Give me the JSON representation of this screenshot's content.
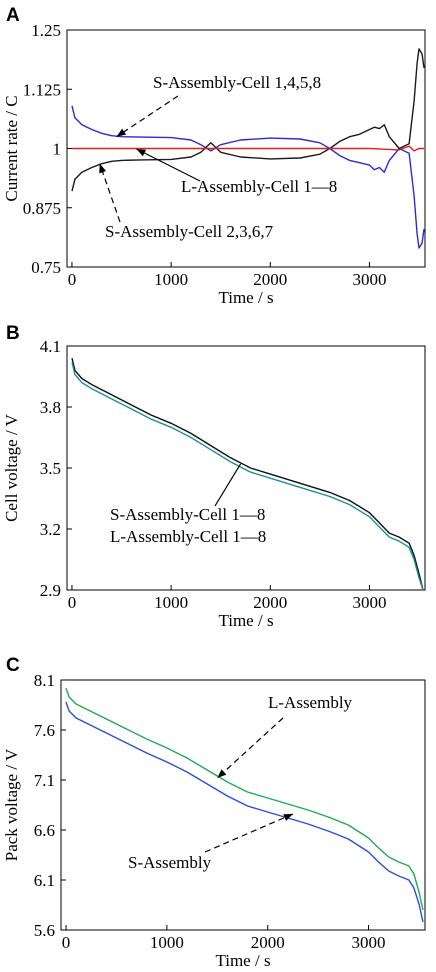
{
  "chart_data": [
    {
      "type": "line",
      "panel_label": "A",
      "xlabel": "Time / s",
      "ylabel": "Current rate / C",
      "xlim": [
        -50,
        3560
      ],
      "ylim": [
        0.75,
        1.25
      ],
      "xticks": [
        0,
        1000,
        2000,
        3000
      ],
      "yticks": [
        0.75,
        0.875,
        1,
        1.125,
        1.25
      ],
      "ytick_labels": [
        "0.75",
        "0.875",
        "1",
        "1.125",
        "1.25"
      ],
      "grid": false,
      "series": [
        {
          "color": "#2b2bd4",
          "x": [
            0,
            30,
            100,
            200,
            300,
            400,
            500,
            700,
            1000,
            1200,
            1300,
            1400,
            1500,
            1700,
            2000,
            2300,
            2500,
            2600,
            2700,
            2800,
            2900,
            3000,
            3050,
            3100,
            3150,
            3200,
            3300,
            3400,
            3450,
            3480,
            3500,
            3530,
            3550
          ],
          "y": [
            1.09,
            1.065,
            1.05,
            1.04,
            1.032,
            1.027,
            1.025,
            1.024,
            1.023,
            1.018,
            1.008,
            0.995,
            1.008,
            1.018,
            1.022,
            1.02,
            1.012,
            1.0,
            0.985,
            0.975,
            0.97,
            0.965,
            0.955,
            0.96,
            0.95,
            0.975,
            1.0,
            0.99,
            0.9,
            0.82,
            0.79,
            0.8,
            0.83
          ]
        },
        {
          "color": "#1a1a1a",
          "x": [
            0,
            30,
            100,
            200,
            300,
            400,
            500,
            700,
            1000,
            1200,
            1300,
            1400,
            1500,
            1700,
            2000,
            2300,
            2500,
            2600,
            2700,
            2800,
            2900,
            3000,
            3050,
            3100,
            3150,
            3200,
            3300,
            3400,
            3450,
            3480,
            3500,
            3530,
            3550
          ],
          "y": [
            0.91,
            0.935,
            0.95,
            0.96,
            0.968,
            0.973,
            0.975,
            0.976,
            0.977,
            0.982,
            0.992,
            1.012,
            0.992,
            0.982,
            0.978,
            0.98,
            0.988,
            1.0,
            1.015,
            1.025,
            1.03,
            1.04,
            1.045,
            1.042,
            1.05,
            1.025,
            1.0,
            1.01,
            1.1,
            1.18,
            1.21,
            1.2,
            1.17
          ]
        },
        {
          "color": "#e02020",
          "x": [
            0,
            500,
            1000,
            1300,
            1400,
            1500,
            2000,
            2600,
            3000,
            3300,
            3400,
            3450,
            3500,
            3550
          ],
          "y": [
            1.0,
            1.0,
            1.0,
            1.0,
            1.0,
            1.0,
            1.0,
            1.0,
            1.0,
            0.997,
            1.005,
            0.995,
            1.0,
            1.0
          ]
        }
      ],
      "annotations": [
        {
          "text": "S-Assembly-Cell 1,4,5,8",
          "points_to": [
            450,
            1.025
          ],
          "style": "dashed"
        },
        {
          "text": "L-Assembly-Cell 1—8",
          "points_to": [
            650,
            0.999
          ],
          "style": "solid"
        },
        {
          "text": "S-Assembly-Cell 2,3,6,7",
          "points_to": [
            280,
            0.968
          ],
          "style": "dashed"
        }
      ]
    },
    {
      "type": "line",
      "panel_label": "B",
      "xlabel": "Time / s",
      "ylabel": "Cell voltage / V",
      "xlim": [
        -50,
        3560
      ],
      "ylim": [
        2.9,
        4.1
      ],
      "xticks": [
        0,
        1000,
        2000,
        3000
      ],
      "yticks": [
        2.9,
        3.2,
        3.5,
        3.8,
        4.1
      ],
      "ytick_labels": [
        "2.9",
        "3.2",
        "3.5",
        "3.8",
        "4.1"
      ],
      "grid": false,
      "series": [
        {
          "color": "#111111",
          "x": [
            0,
            30,
            100,
            200,
            400,
            600,
            800,
            1000,
            1200,
            1400,
            1600,
            1800,
            2000,
            2200,
            2400,
            2600,
            2800,
            3000,
            3100,
            3200,
            3300,
            3400,
            3450,
            3500,
            3540
          ],
          "y": [
            4.04,
            3.98,
            3.94,
            3.91,
            3.86,
            3.81,
            3.76,
            3.72,
            3.67,
            3.61,
            3.55,
            3.5,
            3.47,
            3.44,
            3.41,
            3.38,
            3.34,
            3.28,
            3.23,
            3.18,
            3.16,
            3.13,
            3.07,
            2.98,
            2.9
          ]
        },
        {
          "color": "#1a8fa0",
          "x": [
            0,
            30,
            100,
            200,
            400,
            600,
            800,
            1000,
            1200,
            1400,
            1600,
            1800,
            2000,
            2200,
            2400,
            2600,
            2800,
            3000,
            3100,
            3200,
            3300,
            3400,
            3450,
            3500,
            3540
          ],
          "y": [
            4.02,
            3.96,
            3.92,
            3.89,
            3.84,
            3.79,
            3.74,
            3.7,
            3.65,
            3.59,
            3.53,
            3.48,
            3.45,
            3.42,
            3.39,
            3.36,
            3.32,
            3.26,
            3.21,
            3.16,
            3.14,
            3.11,
            3.05,
            2.96,
            2.9
          ]
        }
      ],
      "annotations": [
        {
          "text": "S-Assembly-Cell 1—8",
          "points_to": [
            1700,
            3.52
          ],
          "style": "solid"
        },
        {
          "text": "L-Assembly-Cell 1—8",
          "points_to": null,
          "style": "none"
        }
      ]
    },
    {
      "type": "line",
      "panel_label": "C",
      "xlabel": "Time / s",
      "ylabel": "Pack voltage / V",
      "xlim": [
        -50,
        3560
      ],
      "ylim": [
        5.6,
        8.1
      ],
      "xticks": [
        0,
        1000,
        2000,
        3000
      ],
      "yticks": [
        5.6,
        6.1,
        6.6,
        7.1,
        7.6,
        8.1
      ],
      "ytick_labels": [
        "5.6",
        "6.1",
        "6.6",
        "7.1",
        "7.6",
        "8.1"
      ],
      "grid": false,
      "series": [
        {
          "color": "#22aa55",
          "x": [
            0,
            30,
            100,
            200,
            400,
            600,
            800,
            1000,
            1200,
            1400,
            1600,
            1800,
            2000,
            2200,
            2400,
            2600,
            2800,
            3000,
            3100,
            3200,
            3300,
            3400,
            3450,
            3500,
            3540
          ],
          "y": [
            8.02,
            7.93,
            7.86,
            7.81,
            7.71,
            7.61,
            7.51,
            7.42,
            7.32,
            7.2,
            7.08,
            6.98,
            6.92,
            6.86,
            6.8,
            6.73,
            6.65,
            6.52,
            6.42,
            6.33,
            6.28,
            6.24,
            6.16,
            5.98,
            5.8
          ]
        },
        {
          "color": "#2b4fd4",
          "x": [
            0,
            30,
            100,
            200,
            400,
            600,
            800,
            1000,
            1200,
            1400,
            1600,
            1800,
            2000,
            2200,
            2400,
            2600,
            2800,
            3000,
            3100,
            3200,
            3300,
            3400,
            3450,
            3500,
            3540
          ],
          "y": [
            7.88,
            7.79,
            7.72,
            7.67,
            7.57,
            7.47,
            7.37,
            7.28,
            7.18,
            7.06,
            6.94,
            6.84,
            6.78,
            6.72,
            6.66,
            6.59,
            6.51,
            6.38,
            6.28,
            6.19,
            6.14,
            6.1,
            6.02,
            5.86,
            5.68
          ]
        }
      ],
      "annotations": [
        {
          "text": "L-Assembly",
          "points_to": [
            1500,
            7.12
          ],
          "style": "dashed"
        },
        {
          "text": "S-Assembly",
          "points_to": [
            2250,
            6.76
          ],
          "style": "dashed"
        }
      ]
    }
  ]
}
